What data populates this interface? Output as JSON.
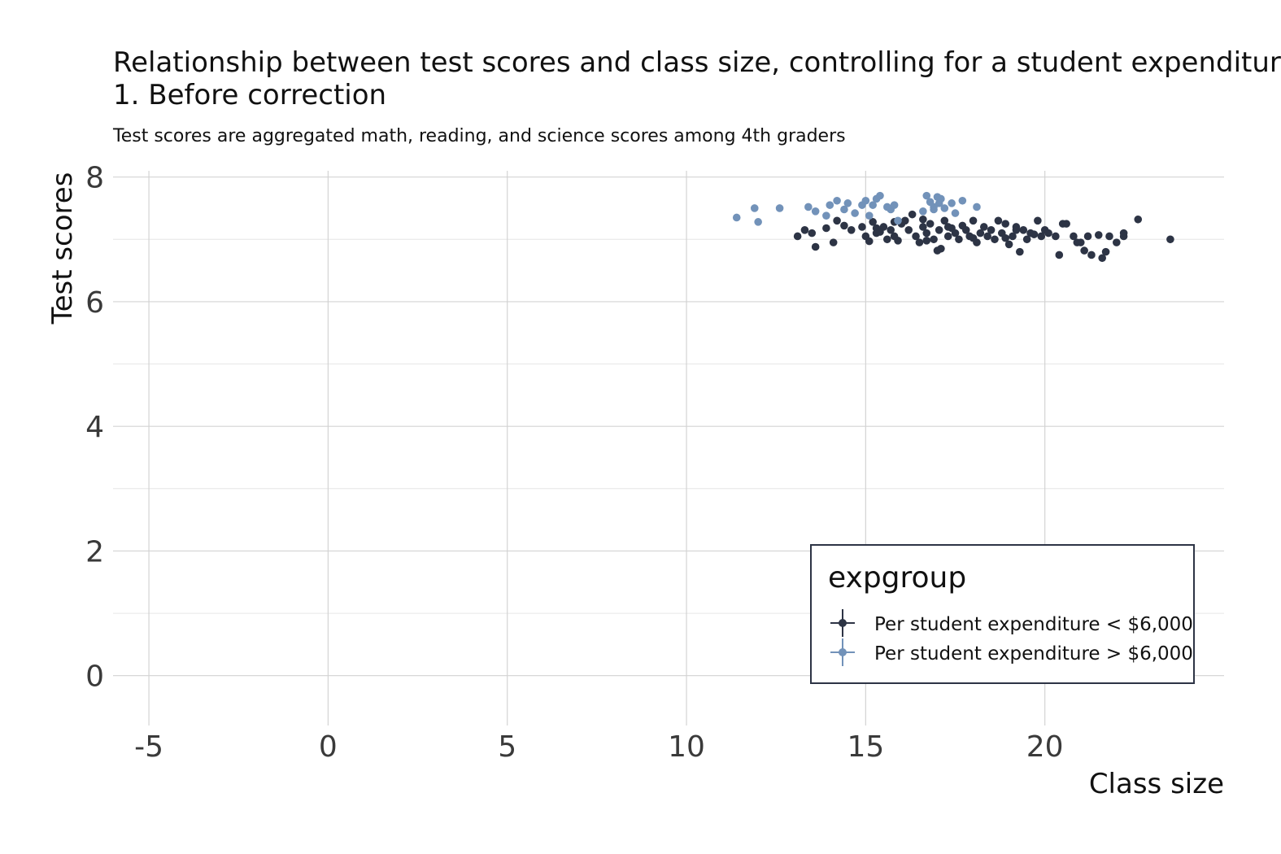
{
  "chart_data": {
    "type": "scatter",
    "title_line1": "Relationship between test scores and class size, controlling for a student expenditur",
    "title_line2": "1. Before correction",
    "subtitle": "Test scores are aggregated math, reading, and science scores among 4th graders",
    "xlabel": "Class size",
    "ylabel": "Test scores",
    "xlim": [
      -6,
      25
    ],
    "ylim": [
      -0.8,
      8.1
    ],
    "x_ticks": [
      -5,
      0,
      5,
      10,
      15,
      20
    ],
    "x_tick_labels": [
      "-5",
      "0",
      "5",
      "10",
      "15",
      "20"
    ],
    "y_ticks": [
      0,
      2,
      4,
      6,
      8
    ],
    "y_tick_labels": [
      "0",
      "2",
      "4",
      "6",
      "8"
    ],
    "grid": true,
    "legend": {
      "title": "expgroup",
      "placement": "bottom-right",
      "entries": [
        "Per student expenditure < $6,000",
        "Per student expenditure > $6,000"
      ]
    },
    "series": [
      {
        "name": "Per student expenditure < $6,000",
        "color": "#2d3445",
        "points": [
          [
            13.1,
            7.05
          ],
          [
            13.3,
            7.15
          ],
          [
            13.5,
            7.1
          ],
          [
            13.6,
            6.88
          ],
          [
            13.9,
            7.18
          ],
          [
            14.1,
            6.95
          ],
          [
            14.2,
            7.3
          ],
          [
            14.4,
            7.22
          ],
          [
            14.6,
            7.15
          ],
          [
            14.9,
            7.2
          ],
          [
            15.0,
            7.05
          ],
          [
            15.1,
            6.97
          ],
          [
            15.2,
            7.28
          ],
          [
            15.3,
            7.1
          ],
          [
            15.4,
            7.12
          ],
          [
            15.5,
            7.2
          ],
          [
            15.6,
            7.0
          ],
          [
            15.7,
            7.15
          ],
          [
            15.8,
            7.05
          ],
          [
            15.9,
            6.98
          ],
          [
            16.0,
            7.25
          ],
          [
            16.1,
            7.3
          ],
          [
            16.2,
            7.15
          ],
          [
            16.3,
            7.4
          ],
          [
            16.4,
            7.05
          ],
          [
            16.5,
            6.95
          ],
          [
            16.6,
            7.2
          ],
          [
            16.7,
            7.1
          ],
          [
            16.8,
            7.25
          ],
          [
            16.9,
            7.0
          ],
          [
            17.0,
            6.82
          ],
          [
            17.05,
            7.15
          ],
          [
            17.1,
            6.85
          ],
          [
            17.2,
            7.3
          ],
          [
            17.3,
            7.05
          ],
          [
            17.4,
            7.18
          ],
          [
            17.5,
            7.1
          ],
          [
            17.6,
            7.0
          ],
          [
            17.7,
            7.22
          ],
          [
            17.8,
            7.15
          ],
          [
            17.9,
            7.05
          ],
          [
            18.0,
            7.3
          ],
          [
            18.1,
            6.95
          ],
          [
            18.2,
            7.1
          ],
          [
            18.3,
            7.2
          ],
          [
            18.4,
            7.05
          ],
          [
            18.5,
            7.15
          ],
          [
            18.6,
            7.0
          ],
          [
            18.7,
            7.3
          ],
          [
            18.8,
            7.1
          ],
          [
            18.9,
            7.25
          ],
          [
            19.0,
            6.92
          ],
          [
            19.1,
            7.05
          ],
          [
            19.2,
            7.2
          ],
          [
            19.3,
            6.8
          ],
          [
            19.4,
            7.15
          ],
          [
            19.5,
            7.0
          ],
          [
            19.6,
            7.1
          ],
          [
            19.7,
            7.08
          ],
          [
            19.8,
            7.3
          ],
          [
            19.9,
            7.05
          ],
          [
            20.0,
            7.15
          ],
          [
            20.1,
            7.1
          ],
          [
            20.3,
            7.05
          ],
          [
            20.4,
            6.75
          ],
          [
            20.5,
            7.25
          ],
          [
            20.6,
            7.25
          ],
          [
            20.8,
            7.05
          ],
          [
            20.9,
            6.95
          ],
          [
            21.0,
            6.95
          ],
          [
            21.1,
            6.82
          ],
          [
            21.2,
            7.05
          ],
          [
            21.3,
            6.75
          ],
          [
            21.5,
            7.07
          ],
          [
            21.6,
            6.7
          ],
          [
            21.7,
            6.8
          ],
          [
            21.8,
            7.05
          ],
          [
            22.0,
            6.95
          ],
          [
            22.2,
            7.1
          ],
          [
            22.2,
            7.05
          ],
          [
            22.6,
            7.32
          ],
          [
            23.5,
            7.0
          ],
          [
            15.3,
            7.18
          ],
          [
            15.8,
            7.28
          ],
          [
            16.6,
            7.32
          ],
          [
            17.3,
            7.2
          ],
          [
            18.0,
            7.02
          ],
          [
            18.9,
            7.02
          ],
          [
            19.2,
            7.15
          ],
          [
            16.7,
            6.98
          ]
        ]
      },
      {
        "name": "Per student expenditure > $6,000",
        "color": "#7292b9",
        "points": [
          [
            11.4,
            7.35
          ],
          [
            11.9,
            7.5
          ],
          [
            12.0,
            7.28
          ],
          [
            12.6,
            7.5
          ],
          [
            13.4,
            7.52
          ],
          [
            13.6,
            7.45
          ],
          [
            13.9,
            7.38
          ],
          [
            14.0,
            7.55
          ],
          [
            14.2,
            7.62
          ],
          [
            14.5,
            7.58
          ],
          [
            14.7,
            7.42
          ],
          [
            14.9,
            7.55
          ],
          [
            15.0,
            7.62
          ],
          [
            15.1,
            7.38
          ],
          [
            15.3,
            7.65
          ],
          [
            15.4,
            7.7
          ],
          [
            15.6,
            7.52
          ],
          [
            15.7,
            7.48
          ],
          [
            15.8,
            7.55
          ],
          [
            15.9,
            7.3
          ],
          [
            16.6,
            7.45
          ],
          [
            16.7,
            7.7
          ],
          [
            16.8,
            7.6
          ],
          [
            16.9,
            7.52
          ],
          [
            17.0,
            7.68
          ],
          [
            17.05,
            7.58
          ],
          [
            17.1,
            7.65
          ],
          [
            17.2,
            7.5
          ],
          [
            17.4,
            7.58
          ],
          [
            17.5,
            7.42
          ],
          [
            17.7,
            7.62
          ],
          [
            18.1,
            7.52
          ],
          [
            16.9,
            7.48
          ],
          [
            15.2,
            7.55
          ],
          [
            14.4,
            7.48
          ]
        ]
      }
    ]
  }
}
